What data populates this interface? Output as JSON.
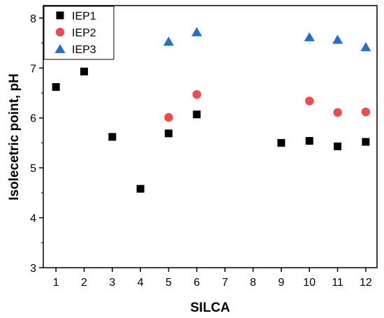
{
  "chart_data": {
    "type": "scatter",
    "title": "",
    "xlabel": "SILCA",
    "ylabel": "Isolecetric point, pH",
    "x_ticks": [
      1,
      2,
      3,
      4,
      5,
      6,
      7,
      8,
      9,
      10,
      11,
      12
    ],
    "y_ticks": [
      3,
      4,
      5,
      6,
      7,
      8
    ],
    "xlim": [
      0.55,
      12.4
    ],
    "ylim": [
      3,
      8.25
    ],
    "grid": false,
    "legend_position": "top-left",
    "series": [
      {
        "name": "IEP1",
        "marker": "square",
        "color": "#000000",
        "points": [
          {
            "x": 1,
            "y": 6.62
          },
          {
            "x": 2,
            "y": 6.93
          },
          {
            "x": 3,
            "y": 5.62
          },
          {
            "x": 4,
            "y": 4.58
          },
          {
            "x": 5,
            "y": 5.69
          },
          {
            "x": 6,
            "y": 6.07
          },
          {
            "x": 9,
            "y": 5.5
          },
          {
            "x": 10,
            "y": 5.54
          },
          {
            "x": 11,
            "y": 5.43
          },
          {
            "x": 12,
            "y": 5.52
          }
        ]
      },
      {
        "name": "IEP2",
        "marker": "circle",
        "color": "#f04a4a",
        "points": [
          {
            "x": 5,
            "y": 6.01
          },
          {
            "x": 6,
            "y": 6.47
          },
          {
            "x": 10,
            "y": 6.34
          },
          {
            "x": 11,
            "y": 6.11
          },
          {
            "x": 12,
            "y": 6.12
          }
        ]
      },
      {
        "name": "IEP3",
        "marker": "triangle",
        "color": "#1f6fd6",
        "points": [
          {
            "x": 5,
            "y": 7.53
          },
          {
            "x": 6,
            "y": 7.72
          },
          {
            "x": 10,
            "y": 7.62
          },
          {
            "x": 11,
            "y": 7.57
          },
          {
            "x": 12,
            "y": 7.42
          }
        ]
      }
    ]
  }
}
